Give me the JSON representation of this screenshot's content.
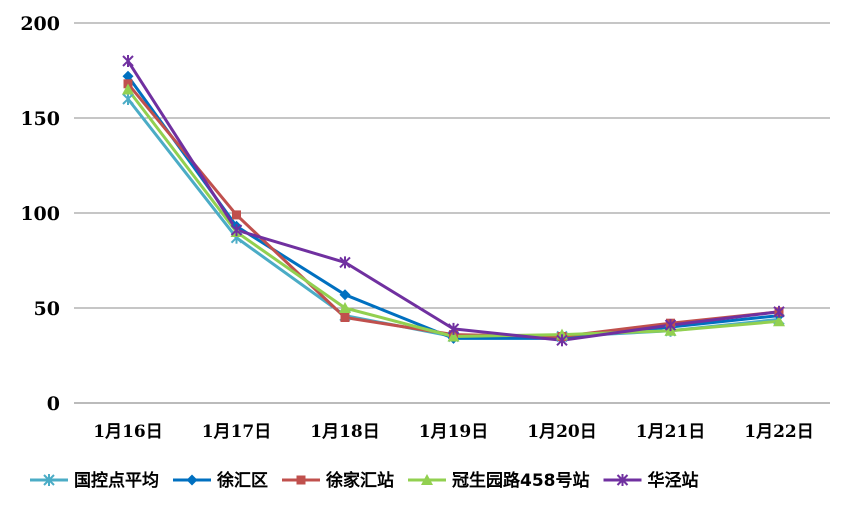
{
  "chart_data": {
    "type": "line",
    "categories": [
      "1月16日",
      "1月17日",
      "1月18日",
      "1月19日",
      "1月20日",
      "1月21日",
      "1月22日"
    ],
    "ylim": [
      0,
      200
    ],
    "yticks": [
      0,
      50,
      100,
      150,
      200
    ],
    "grid": true,
    "legend_position": "bottom",
    "series": [
      {
        "name": "国控点平均",
        "color": "#4BACC6",
        "marker": "star",
        "values": [
          160,
          87,
          46,
          35,
          35,
          38,
          44
        ]
      },
      {
        "name": "徐汇区",
        "color": "#0070C0",
        "marker": "diamond",
        "values": [
          172,
          93,
          57,
          34,
          34,
          40,
          46
        ]
      },
      {
        "name": "徐家汇站",
        "color": "#C0504D",
        "marker": "square",
        "values": [
          168,
          99,
          45,
          36,
          35,
          42,
          48
        ]
      },
      {
        "name": "冠生园路458号站",
        "color": "#92D050",
        "marker": "triangle",
        "values": [
          165,
          90,
          50,
          35,
          36,
          38,
          43
        ]
      },
      {
        "name": "华泾站",
        "color": "#7030A0",
        "marker": "star",
        "values": [
          180,
          91,
          74,
          39,
          33,
          41,
          48
        ]
      }
    ]
  }
}
